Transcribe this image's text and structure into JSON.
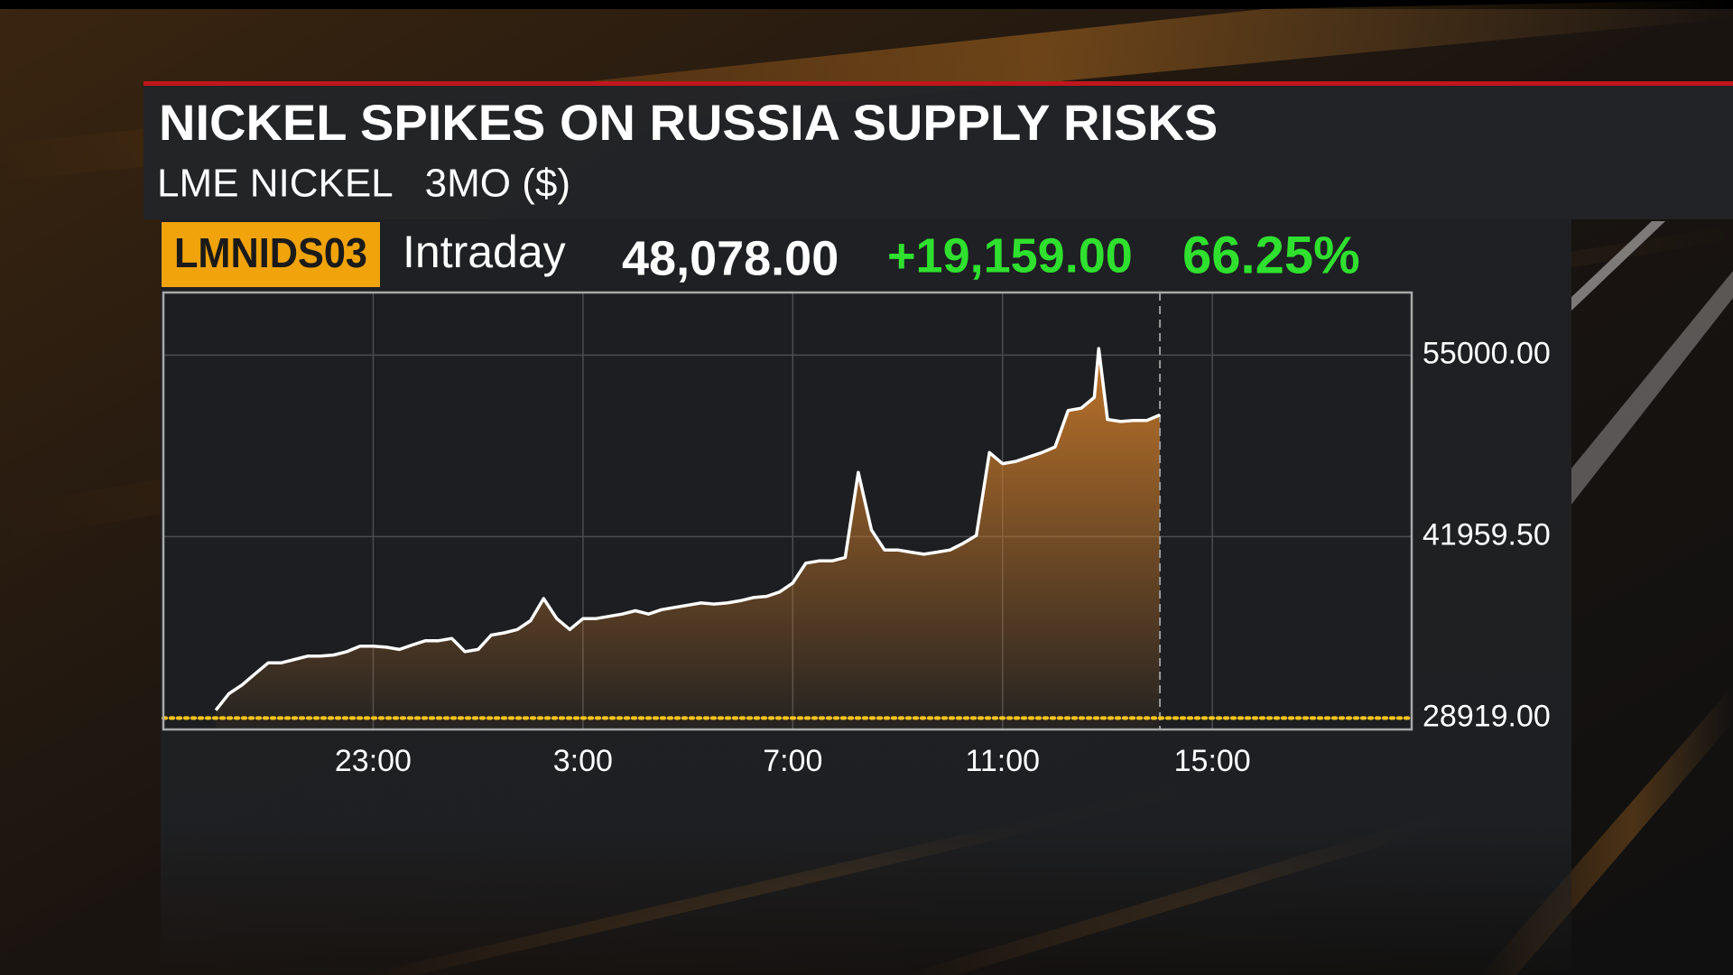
{
  "header": {
    "title": "NICKEL SPIKES ON RUSSIA SUPPLY RISKS",
    "subtitle": "LME NICKEL   3MO ($)",
    "ticker": "LMNIDS03",
    "period": "Intraday",
    "price": "48,078.00",
    "change": "+19,159.00",
    "change_pct": "66.25%",
    "change_color": "#2fe02f"
  },
  "chart_data": {
    "type": "area",
    "x": [
      "20:00",
      "20:15",
      "20:30",
      "20:45",
      "21:00",
      "21:15",
      "21:30",
      "21:45",
      "22:00",
      "22:15",
      "22:30",
      "22:45",
      "23:00",
      "23:15",
      "23:30",
      "23:45",
      "0:00",
      "0:15",
      "0:30",
      "0:45",
      "1:00",
      "1:15",
      "1:30",
      "1:45",
      "2:00",
      "2:15",
      "2:30",
      "2:45",
      "3:00",
      "3:15",
      "3:30",
      "3:45",
      "4:00",
      "4:15",
      "4:30",
      "4:45",
      "5:00",
      "5:15",
      "5:30",
      "5:45",
      "6:00",
      "6:15",
      "6:30",
      "6:45",
      "7:00",
      "7:15",
      "7:30",
      "7:45",
      "8:00",
      "8:15",
      "8:30",
      "8:45",
      "9:00",
      "9:15",
      "9:30",
      "9:45",
      "10:00",
      "10:15",
      "10:30",
      "10:45",
      "11:00",
      "11:15",
      "11:30",
      "11:45",
      "12:00",
      "12:15",
      "12:30",
      "12:45",
      "12:50",
      "13:00",
      "13:15",
      "13:30",
      "13:45",
      "14:00"
    ],
    "values": [
      29480,
      30670,
      31300,
      32100,
      32890,
      32890,
      33130,
      33370,
      33370,
      33450,
      33690,
      34090,
      34090,
      34010,
      33850,
      34170,
      34480,
      34480,
      34640,
      33690,
      33850,
      34880,
      35040,
      35280,
      35920,
      37510,
      36070,
      35280,
      36070,
      36070,
      36230,
      36390,
      36630,
      36390,
      36710,
      36870,
      37030,
      37190,
      37110,
      37190,
      37350,
      37580,
      37660,
      37980,
      38620,
      40050,
      40210,
      40210,
      40450,
      46570,
      42430,
      41000,
      41000,
      40840,
      40690,
      40840,
      41000,
      41480,
      42040,
      48000,
      47200,
      47360,
      47680,
      48000,
      48400,
      51020,
      51180,
      51970,
      55470,
      50380,
      50230,
      50300,
      50300,
      50700
    ],
    "color": "#ffffff",
    "fill_color": "#c8792a",
    "xlim": [
      "19:00",
      "18:48"
    ],
    "xticks": [
      "23:00",
      "3:00",
      "7:00",
      "11:00",
      "15:00"
    ],
    "ylim": [
      28100,
      59500
    ],
    "yticks": [
      {
        "value": 55000,
        "label": "55000.00"
      },
      {
        "value": 41959.5,
        "label": "41959.50"
      },
      {
        "value": 28919,
        "label": "28919.00"
      }
    ],
    "grid": true,
    "reference_line": {
      "value": 28919,
      "color": "#ffc61a"
    }
  }
}
